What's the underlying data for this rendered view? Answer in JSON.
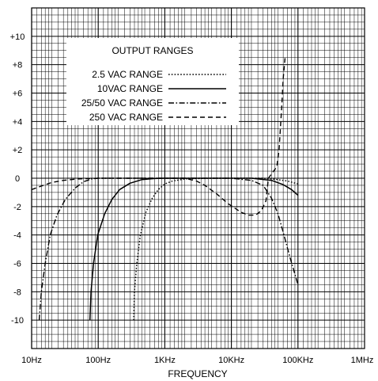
{
  "chart_data": {
    "type": "line",
    "title": "",
    "xlabel": "FREQUENCY",
    "ylabel": "",
    "x_scale": "log",
    "xlim": [
      10,
      1000000
    ],
    "ylim": [
      -12,
      12
    ],
    "grid": true,
    "x_tick_labels": [
      {
        "value": 10,
        "label": "10Hz"
      },
      {
        "value": 100,
        "label": "100Hz"
      },
      {
        "value": 1000,
        "label": "1KHz"
      },
      {
        "value": 10000,
        "label": "10KHz"
      },
      {
        "value": 100000,
        "label": "100KHz"
      },
      {
        "value": 1000000,
        "label": "1MHz"
      }
    ],
    "y_tick_labels": [
      {
        "value": 10,
        "label": "+10"
      },
      {
        "value": 8,
        "label": "+8"
      },
      {
        "value": 6,
        "label": "+6"
      },
      {
        "value": 4,
        "label": "+4"
      },
      {
        "value": 2,
        "label": "+2"
      },
      {
        "value": 0,
        "label": "0"
      },
      {
        "value": -2,
        "label": "-2"
      },
      {
        "value": -4,
        "label": "-4"
      },
      {
        "value": -6,
        "label": "-6"
      },
      {
        "value": -8,
        "label": "-8"
      },
      {
        "value": -10,
        "label": "-10"
      }
    ],
    "legend": {
      "title": "OUTPUT RANGES",
      "placement": "top-left"
    },
    "series": [
      {
        "name": "2.5 VAC RANGE",
        "dash": "dotted",
        "points": [
          [
            340,
            -10
          ],
          [
            350,
            -8
          ],
          [
            380,
            -6
          ],
          [
            430,
            -4
          ],
          [
            520,
            -2.4
          ],
          [
            650,
            -1.4
          ],
          [
            800,
            -0.8
          ],
          [
            1000,
            -0.4
          ],
          [
            1300,
            -0.2
          ],
          [
            2000,
            -0.05
          ],
          [
            5000,
            0
          ],
          [
            15000,
            0
          ],
          [
            30000,
            0
          ],
          [
            50000,
            -0.1
          ],
          [
            70000,
            -0.2
          ],
          [
            100000,
            -0.4
          ]
        ]
      },
      {
        "name": "10VAC RANGE",
        "dash": "solid",
        "points": [
          [
            75,
            -10
          ],
          [
            78,
            -8
          ],
          [
            85,
            -6
          ],
          [
            98,
            -4
          ],
          [
            125,
            -2.5
          ],
          [
            160,
            -1.5
          ],
          [
            210,
            -0.8
          ],
          [
            300,
            -0.35
          ],
          [
            450,
            -0.1
          ],
          [
            700,
            -0.02
          ],
          [
            1000,
            0
          ],
          [
            10000,
            0
          ],
          [
            20000,
            0
          ],
          [
            40000,
            -0.15
          ],
          [
            60000,
            -0.45
          ],
          [
            80000,
            -0.8
          ],
          [
            100000,
            -1.2
          ]
        ]
      },
      {
        "name": "25/50 VAC RANGE",
        "dash": "dash-dot",
        "points": [
          [
            13,
            -10
          ],
          [
            14,
            -8
          ],
          [
            16,
            -6
          ],
          [
            19,
            -4
          ],
          [
            24,
            -2.6
          ],
          [
            32,
            -1.5
          ],
          [
            45,
            -0.7
          ],
          [
            60,
            -0.25
          ],
          [
            80,
            -0.05
          ],
          [
            100,
            0
          ],
          [
            10000,
            0
          ],
          [
            20000,
            -0.15
          ],
          [
            30000,
            -0.5
          ],
          [
            40000,
            -1.4
          ],
          [
            50000,
            -2.5
          ],
          [
            60000,
            -3.8
          ],
          [
            75000,
            -5.5
          ],
          [
            100000,
            -7.5
          ]
        ]
      },
      {
        "name": "250 VAC RANGE",
        "dash": "dashed",
        "points": [
          [
            10,
            -0.8
          ],
          [
            14,
            -0.55
          ],
          [
            20,
            -0.3
          ],
          [
            30,
            -0.15
          ],
          [
            50,
            -0.05
          ],
          [
            100,
            0
          ],
          [
            1000,
            0
          ],
          [
            2000,
            0
          ],
          [
            3000,
            -0.2
          ],
          [
            4000,
            -0.5
          ],
          [
            6000,
            -1.1
          ],
          [
            9000,
            -1.8
          ],
          [
            14000,
            -2.4
          ],
          [
            18000,
            -2.6
          ],
          [
            23000,
            -2.6
          ],
          [
            28000,
            -2.3
          ],
          [
            33000,
            -1.6
          ],
          [
            36000,
            0
          ],
          [
            40000,
            0.3
          ],
          [
            48000,
            0.8
          ],
          [
            52000,
            2
          ],
          [
            57000,
            5
          ],
          [
            60000,
            7
          ],
          [
            64000,
            8.5
          ]
        ]
      }
    ]
  }
}
